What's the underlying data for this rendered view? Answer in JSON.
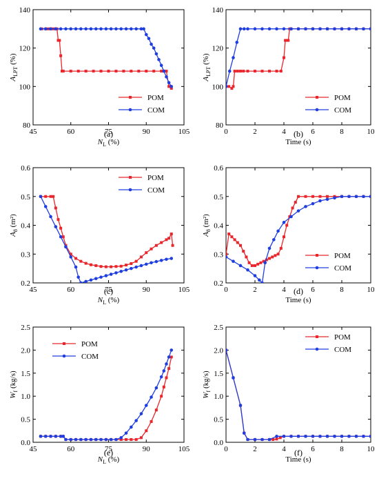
{
  "colors": {
    "POM": "#e8262b",
    "COM": "#1f3ee0",
    "axis": "#000000"
  },
  "chart_data": [
    {
      "id": "a",
      "panel_label": "(a)",
      "type": "line",
      "xlim": [
        45,
        105
      ],
      "ylim": [
        80,
        140
      ],
      "xticks": [
        45,
        60,
        75,
        90,
        105
      ],
      "yticks": [
        80,
        100,
        120,
        140
      ],
      "xlabel": {
        "main": "N",
        "sub": "L",
        "unit": " (%)"
      },
      "ylabel": {
        "main": "A",
        "sub": "LPT",
        "unit": " (%)"
      },
      "legend": {
        "position": "bottom-right",
        "entries": [
          "POM",
          "COM"
        ]
      },
      "series": [
        {
          "name": "POM",
          "color_key": "POM",
          "marker": "square",
          "x": [
            48.5,
            50,
            51,
            52,
            53,
            54,
            54.5,
            55,
            55.5,
            56,
            56.5,
            57,
            60,
            63,
            66,
            69,
            72,
            75,
            78,
            81,
            84,
            87,
            90,
            93,
            96,
            97,
            98,
            99,
            99.5,
            100
          ],
          "y": [
            130,
            130,
            130,
            130,
            130,
            130,
            130,
            124,
            124,
            116,
            108,
            108,
            108,
            108,
            108,
            108,
            108,
            108,
            108,
            108,
            108,
            108,
            108,
            108,
            108,
            108,
            108,
            100,
            100,
            99
          ]
        },
        {
          "name": "COM",
          "color_key": "COM",
          "marker": "circle",
          "x": [
            48,
            50,
            52,
            54,
            56,
            58,
            60,
            62,
            64,
            66,
            68,
            70,
            72,
            74,
            76,
            78,
            80,
            82,
            84,
            86,
            88,
            89,
            90,
            91,
            92,
            93,
            94,
            95,
            96,
            97,
            98,
            99,
            100
          ],
          "y": [
            130,
            130,
            130,
            130,
            130,
            130,
            130,
            130,
            130,
            130,
            130,
            130,
            130,
            130,
            130,
            130,
            130,
            130,
            130,
            130,
            130,
            130,
            127,
            125,
            122,
            120,
            117,
            114,
            111,
            108,
            105,
            102,
            100
          ]
        }
      ]
    },
    {
      "id": "b",
      "panel_label": "(b)",
      "type": "line",
      "xlim": [
        0,
        10
      ],
      "ylim": [
        80,
        140
      ],
      "xticks": [
        0,
        2,
        4,
        6,
        8,
        10
      ],
      "yticks": [
        80,
        100,
        120,
        140
      ],
      "xlabel": {
        "main": "Time (s)",
        "sub": "",
        "unit": ""
      },
      "ylabel": {
        "main": "A",
        "sub": "LPT",
        "unit": " (%)"
      },
      "legend": {
        "position": "bottom-right",
        "entries": [
          "POM",
          "COM"
        ]
      },
      "series": [
        {
          "name": "POM",
          "color_key": "POM",
          "marker": "square",
          "x": [
            0,
            0.2,
            0.4,
            0.5,
            0.6,
            0.8,
            1,
            1.2,
            1.5,
            2,
            2.5,
            3,
            3.5,
            3.8,
            4,
            4.1,
            4.2,
            4.3,
            4.4,
            4.5,
            5,
            5.5,
            6,
            6.5,
            7,
            7.5,
            8,
            8.5,
            9,
            9.5,
            10
          ],
          "y": [
            100,
            100,
            99,
            100,
            108,
            108,
            108,
            108,
            108,
            108,
            108,
            108,
            108,
            108,
            115,
            124,
            124,
            124,
            130,
            130,
            130,
            130,
            130,
            130,
            130,
            130,
            130,
            130,
            130,
            130,
            130
          ]
        },
        {
          "name": "COM",
          "color_key": "COM",
          "marker": "circle",
          "x": [
            0,
            0.25,
            0.5,
            0.75,
            1,
            1.25,
            1.5,
            2,
            2.5,
            3,
            3.5,
            4,
            4.5,
            5,
            5.5,
            6,
            6.5,
            7,
            7.5,
            8,
            8.5,
            9,
            9.5,
            10
          ],
          "y": [
            100,
            108,
            115,
            123,
            130,
            130,
            130,
            130,
            130,
            130,
            130,
            130,
            130,
            130,
            130,
            130,
            130,
            130,
            130,
            130,
            130,
            130,
            130,
            130
          ]
        }
      ]
    },
    {
      "id": "c",
      "panel_label": "(c)",
      "type": "line",
      "xlim": [
        45,
        105
      ],
      "ylim": [
        0.2,
        0.6
      ],
      "xticks": [
        45,
        60,
        75,
        90,
        105
      ],
      "yticks": [
        0.2,
        0.3,
        0.4,
        0.5,
        0.6
      ],
      "xlabel": {
        "main": "N",
        "sub": "L",
        "unit": " (%)"
      },
      "ylabel": {
        "main": "A",
        "sub": "8",
        "unit": " (m²)"
      },
      "legend": {
        "position": "top-right",
        "entries": [
          "POM",
          "COM"
        ]
      },
      "series": [
        {
          "name": "POM",
          "color_key": "POM",
          "marker": "square",
          "x": [
            48,
            50,
            52,
            53,
            54,
            55,
            56,
            57,
            58,
            60,
            62,
            64,
            66,
            68,
            70,
            72,
            74,
            76,
            78,
            80,
            82,
            84,
            86,
            88,
            90,
            92,
            94,
            96,
            98,
            99,
            100,
            100.5
          ],
          "y": [
            0.5,
            0.5,
            0.5,
            0.5,
            0.46,
            0.42,
            0.39,
            0.36,
            0.33,
            0.3,
            0.285,
            0.275,
            0.268,
            0.263,
            0.26,
            0.257,
            0.256,
            0.256,
            0.257,
            0.258,
            0.262,
            0.267,
            0.275,
            0.29,
            0.305,
            0.318,
            0.33,
            0.34,
            0.35,
            0.355,
            0.37,
            0.33
          ]
        },
        {
          "name": "COM",
          "color_key": "COM",
          "marker": "circle",
          "x": [
            48,
            50,
            52,
            54,
            56,
            58,
            60,
            62,
            63,
            64,
            66,
            68,
            70,
            72,
            74,
            76,
            78,
            80,
            82,
            84,
            86,
            88,
            90,
            92,
            94,
            96,
            98,
            100
          ],
          "y": [
            0.5,
            0.465,
            0.43,
            0.395,
            0.36,
            0.325,
            0.29,
            0.255,
            0.22,
            0.2,
            0.205,
            0.21,
            0.215,
            0.22,
            0.225,
            0.23,
            0.235,
            0.24,
            0.245,
            0.25,
            0.255,
            0.26,
            0.265,
            0.27,
            0.274,
            0.278,
            0.282,
            0.285
          ]
        }
      ]
    },
    {
      "id": "d",
      "panel_label": "(d)",
      "type": "line",
      "xlim": [
        0,
        10
      ],
      "ylim": [
        0.2,
        0.6
      ],
      "xticks": [
        0,
        2,
        4,
        6,
        8,
        10
      ],
      "yticks": [
        0.2,
        0.3,
        0.4,
        0.5,
        0.6
      ],
      "xlabel": {
        "main": "Time (s)",
        "sub": "",
        "unit": ""
      },
      "ylabel": {
        "main": "A",
        "sub": "8",
        "unit": " (m²)"
      },
      "legend": {
        "position": "bottom-right",
        "entries": [
          "POM",
          "COM"
        ]
      },
      "series": [
        {
          "name": "POM",
          "color_key": "POM",
          "marker": "square",
          "x": [
            0,
            0.2,
            0.4,
            0.6,
            0.8,
            1,
            1.2,
            1.4,
            1.6,
            1.8,
            2,
            2.2,
            2.4,
            2.6,
            2.8,
            3,
            3.2,
            3.4,
            3.6,
            3.8,
            4,
            4.2,
            4.4,
            4.6,
            4.8,
            5,
            5.5,
            6,
            6.5,
            7,
            7.5,
            8,
            8.5,
            9,
            9.5,
            10
          ],
          "y": [
            0.3,
            0.37,
            0.36,
            0.35,
            0.34,
            0.33,
            0.31,
            0.29,
            0.27,
            0.26,
            0.26,
            0.265,
            0.27,
            0.275,
            0.28,
            0.285,
            0.29,
            0.295,
            0.3,
            0.32,
            0.36,
            0.4,
            0.43,
            0.46,
            0.48,
            0.5,
            0.5,
            0.5,
            0.5,
            0.5,
            0.5,
            0.5,
            0.5,
            0.5,
            0.5,
            0.5
          ]
        },
        {
          "name": "COM",
          "color_key": "COM",
          "marker": "circle",
          "x": [
            0,
            0.5,
            1,
            1.5,
            2,
            2.3,
            2.5,
            2.7,
            3,
            3.3,
            3.6,
            4,
            4.5,
            5,
            5.5,
            6,
            6.5,
            7,
            7.5,
            8,
            8.5,
            9,
            9.5,
            10
          ],
          "y": [
            0.29,
            0.275,
            0.26,
            0.245,
            0.225,
            0.21,
            0.2,
            0.27,
            0.32,
            0.35,
            0.38,
            0.41,
            0.43,
            0.45,
            0.465,
            0.475,
            0.485,
            0.49,
            0.495,
            0.5,
            0.5,
            0.5,
            0.5,
            0.5
          ]
        }
      ]
    },
    {
      "id": "e",
      "panel_label": "(e)",
      "type": "line",
      "xlim": [
        45,
        105
      ],
      "ylim": [
        0,
        2.5
      ],
      "xticks": [
        45,
        60,
        75,
        90,
        105
      ],
      "yticks": [
        0.0,
        0.5,
        1.0,
        1.5,
        2.0,
        2.5
      ],
      "xlabel": {
        "main": "N",
        "sub": "L",
        "unit": " (%)"
      },
      "ylabel": {
        "main": "W",
        "sub": "f",
        "unit": " (kg/s)"
      },
      "legend": {
        "position": "top-left",
        "entries": [
          "POM",
          "COM"
        ]
      },
      "series": [
        {
          "name": "POM",
          "color_key": "POM",
          "marker": "square",
          "x": [
            48,
            50,
            52,
            54,
            56,
            57,
            58,
            60,
            62,
            64,
            66,
            68,
            70,
            72,
            74,
            76,
            78,
            80,
            82,
            84,
            86,
            88,
            90,
            92,
            94,
            96,
            97,
            98,
            99,
            100
          ],
          "y": [
            0.13,
            0.13,
            0.13,
            0.13,
            0.13,
            0.13,
            0.06,
            0.06,
            0.06,
            0.06,
            0.06,
            0.06,
            0.06,
            0.06,
            0.06,
            0.06,
            0.06,
            0.06,
            0.06,
            0.06,
            0.06,
            0.1,
            0.25,
            0.45,
            0.7,
            1.0,
            1.2,
            1.4,
            1.6,
            1.85
          ]
        },
        {
          "name": "COM",
          "color_key": "COM",
          "marker": "circle",
          "x": [
            48,
            50,
            52,
            54,
            56,
            57,
            58,
            60,
            62,
            64,
            66,
            68,
            70,
            72,
            74,
            76,
            78,
            80,
            82,
            84,
            86,
            88,
            90,
            92,
            94,
            96,
            97,
            98,
            99,
            100
          ],
          "y": [
            0.13,
            0.13,
            0.13,
            0.13,
            0.13,
            0.13,
            0.06,
            0.06,
            0.06,
            0.06,
            0.06,
            0.06,
            0.06,
            0.06,
            0.06,
            0.06,
            0.06,
            0.1,
            0.2,
            0.33,
            0.47,
            0.62,
            0.8,
            0.98,
            1.18,
            1.42,
            1.55,
            1.7,
            1.85,
            2.0
          ]
        }
      ]
    },
    {
      "id": "f",
      "panel_label": "(f)",
      "type": "line",
      "xlim": [
        0,
        10
      ],
      "ylim": [
        0,
        2.5
      ],
      "xticks": [
        0,
        2,
        4,
        6,
        8,
        10
      ],
      "yticks": [
        0.0,
        0.5,
        1.0,
        1.5,
        2.0,
        2.5
      ],
      "xlabel": {
        "main": "Time (s)",
        "sub": "",
        "unit": ""
      },
      "ylabel": {
        "main": "W",
        "sub": "f",
        "unit": " (kg/s)"
      },
      "legend": {
        "position": "top-right",
        "entries": [
          "POM",
          "COM"
        ]
      },
      "series": [
        {
          "name": "POM",
          "color_key": "POM",
          "marker": "square",
          "x": [
            0,
            0.5,
            1,
            1.25,
            1.5,
            2,
            2.5,
            3,
            3.25,
            3.5,
            3.75,
            4,
            4.5,
            5,
            5.5,
            6,
            6.5,
            7,
            7.5,
            8,
            8.5,
            9,
            9.5,
            10
          ],
          "y": [
            2.0,
            1.4,
            0.8,
            0.2,
            0.06,
            0.06,
            0.06,
            0.06,
            0.06,
            0.07,
            0.1,
            0.13,
            0.13,
            0.13,
            0.13,
            0.13,
            0.13,
            0.13,
            0.13,
            0.13,
            0.13,
            0.13,
            0.13,
            0.13
          ]
        },
        {
          "name": "COM",
          "color_key": "COM",
          "marker": "circle",
          "x": [
            0,
            0.5,
            1,
            1.25,
            1.5,
            2,
            2.5,
            3,
            3.5,
            4,
            4.5,
            5,
            5.5,
            6,
            6.5,
            7,
            7.5,
            8,
            8.5,
            9,
            9.5,
            10
          ],
          "y": [
            2.0,
            1.4,
            0.8,
            0.2,
            0.06,
            0.06,
            0.06,
            0.06,
            0.13,
            0.13,
            0.13,
            0.13,
            0.13,
            0.13,
            0.13,
            0.13,
            0.13,
            0.13,
            0.13,
            0.13,
            0.13,
            0.13
          ]
        }
      ]
    }
  ]
}
